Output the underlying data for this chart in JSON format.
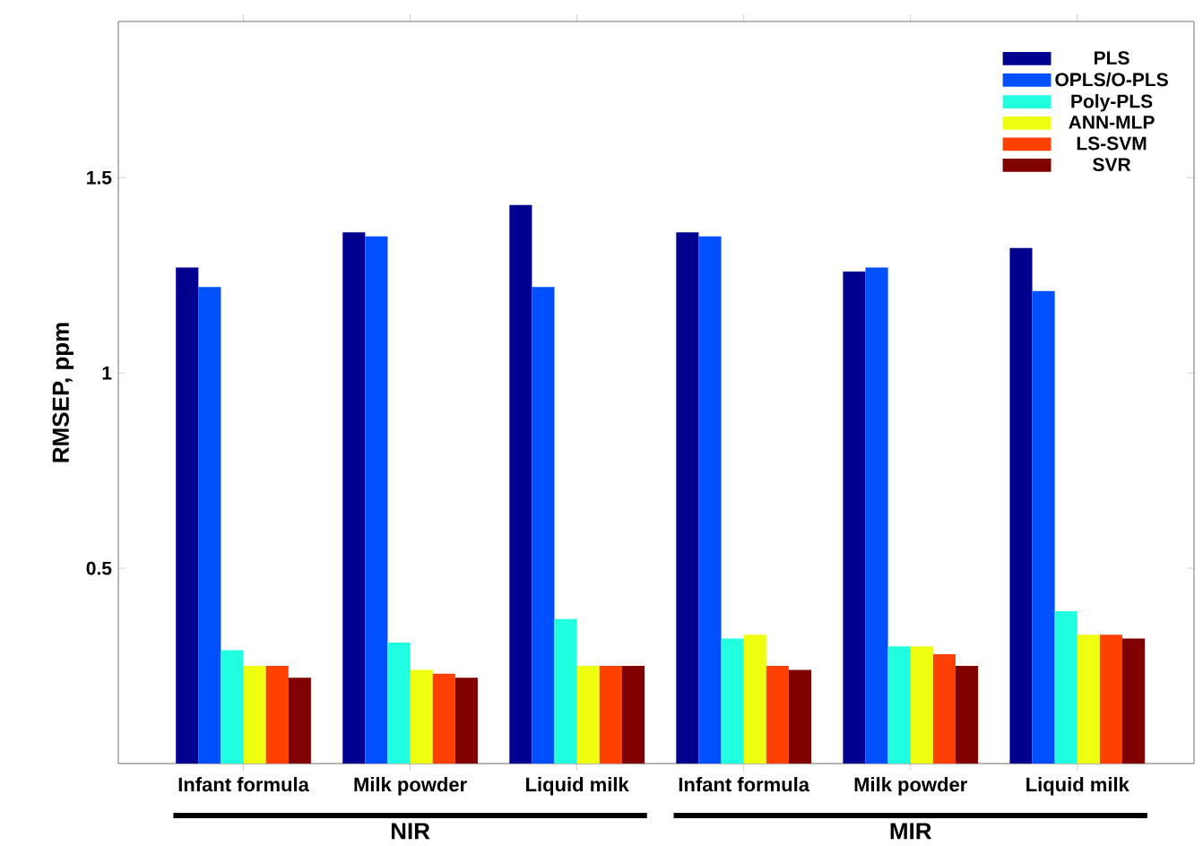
{
  "chart_data": {
    "type": "bar",
    "ylabel": "RMSEP, ppm",
    "categories": [
      "Infant formula",
      "Milk powder",
      "Liquid milk",
      "Infant formula",
      "Milk powder",
      "Liquid milk"
    ],
    "series": [
      {
        "name": "PLS",
        "color": "#00008f",
        "values": [
          1.27,
          1.36,
          1.43,
          1.36,
          1.26,
          1.32
        ]
      },
      {
        "name": "OPLS/O-PLS",
        "color": "#0050ff",
        "values": [
          1.22,
          1.35,
          1.22,
          1.35,
          1.27,
          1.21
        ]
      },
      {
        "name": "Poly-PLS",
        "color": "#20ffdf",
        "values": [
          0.29,
          0.31,
          0.37,
          0.32,
          0.3,
          0.39
        ]
      },
      {
        "name": "ANN-MLP",
        "color": "#efff10",
        "values": [
          0.25,
          0.24,
          0.25,
          0.33,
          0.3,
          0.33
        ]
      },
      {
        "name": "LS-SVM",
        "color": "#ff4000",
        "values": [
          0.25,
          0.23,
          0.25,
          0.25,
          0.28,
          0.33
        ]
      },
      {
        "name": "SVR",
        "color": "#800000",
        "values": [
          0.22,
          0.22,
          0.25,
          0.24,
          0.25,
          0.32
        ]
      }
    ],
    "ylim": [
      0,
      1.9
    ],
    "yticks": [
      0.5,
      1,
      1.5
    ],
    "legend": "top right",
    "annotations": [
      "NIR",
      "MIR"
    ]
  }
}
